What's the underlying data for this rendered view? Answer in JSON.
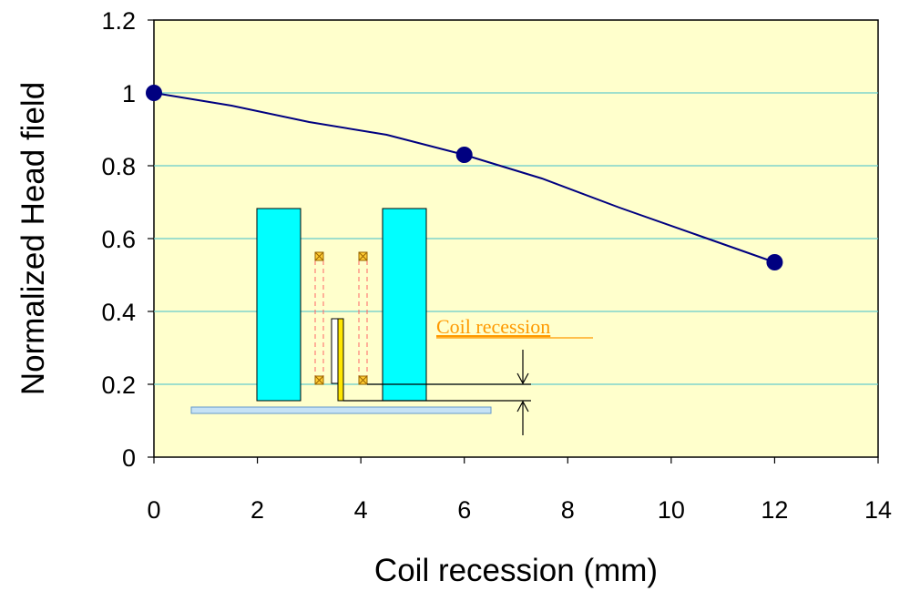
{
  "chart_data": {
    "type": "line",
    "xlabel": "Coil recession (mm)",
    "ylabel": "Normalized Head field",
    "xlim": [
      0,
      14
    ],
    "ylim": [
      0,
      1.2
    ],
    "xticks": [
      "0",
      "2",
      "4",
      "6",
      "8",
      "10",
      "12",
      "14"
    ],
    "yticks": [
      "0",
      "0.2",
      "0.4",
      "0.6",
      "0.8",
      "1",
      "1.2"
    ],
    "grid": "horizontal",
    "series": [
      {
        "line": {
          "x": [
            0,
            1.5,
            3,
            4.5,
            6,
            7.5,
            9,
            10.5,
            12
          ],
          "y": [
            1.0,
            0.965,
            0.92,
            0.885,
            0.83,
            0.765,
            0.685,
            0.61,
            0.535
          ]
        },
        "markers": {
          "x": [
            0,
            6,
            12
          ],
          "y": [
            1.0,
            0.83,
            0.535
          ]
        }
      }
    ],
    "colors": {
      "plot_background": "#FFFFCC",
      "line": "#000080",
      "markers": "#000080",
      "gridlines": "#66CCCC",
      "poles": "#00FFFF",
      "annotation_text": "#FF9900"
    },
    "annotations": [
      {
        "text": "Coil recession"
      }
    ]
  }
}
